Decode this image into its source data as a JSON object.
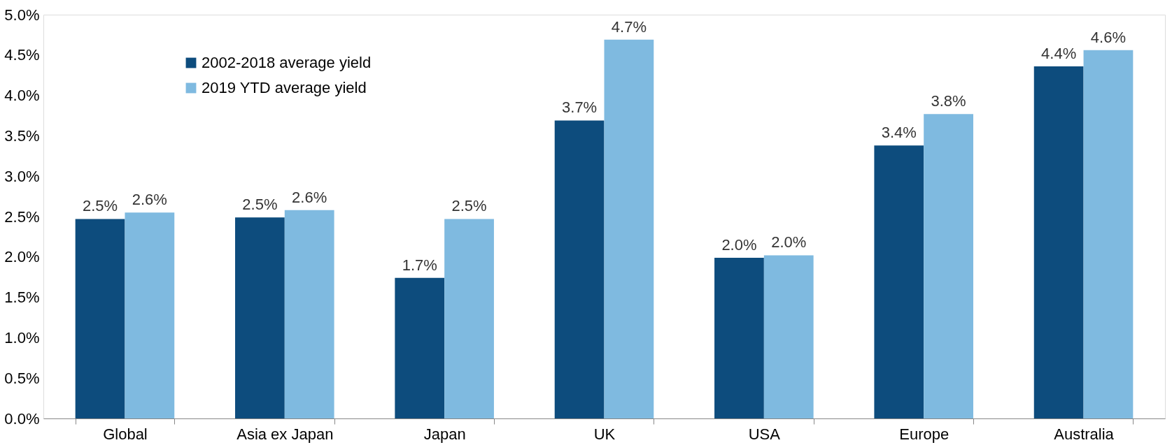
{
  "chart_data": {
    "type": "bar",
    "categories": [
      "Global",
      "Asia ex Japan",
      "Japan",
      "UK",
      "USA",
      "Europe",
      "Australia"
    ],
    "series": [
      {
        "name": "2002-2018 average yield",
        "color": "#0d4c7d",
        "values": [
          2.47,
          2.49,
          1.74,
          3.69,
          1.99,
          3.38,
          4.36
        ],
        "value_labels": [
          "2.5%",
          "2.5%",
          "1.7%",
          "3.7%",
          "2.0%",
          "3.4%",
          "4.4%"
        ]
      },
      {
        "name": "2019 YTD average yield",
        "color": "#7fbae0",
        "values": [
          2.55,
          2.58,
          2.47,
          4.69,
          2.02,
          3.77,
          4.56
        ],
        "value_labels": [
          "2.6%",
          "2.6%",
          "2.5%",
          "4.7%",
          "2.0%",
          "3.8%",
          "4.6%"
        ]
      }
    ],
    "ylim": [
      0,
      5
    ],
    "yticks": [
      {
        "value": 0,
        "label": "0.0%"
      },
      {
        "value": 0.5,
        "label": "0.5%"
      },
      {
        "value": 1,
        "label": "1.0%"
      },
      {
        "value": 1.5,
        "label": "1.5%"
      },
      {
        "value": 2,
        "label": "2.0%"
      },
      {
        "value": 2.5,
        "label": "2.5%"
      },
      {
        "value": 3,
        "label": "3.0%"
      },
      {
        "value": 3.5,
        "label": "3.5%"
      },
      {
        "value": 4,
        "label": "4.0%"
      },
      {
        "value": 4.5,
        "label": "4.5%"
      },
      {
        "value": 5,
        "label": "5.0%"
      }
    ],
    "grid": false,
    "legend": "top left"
  }
}
